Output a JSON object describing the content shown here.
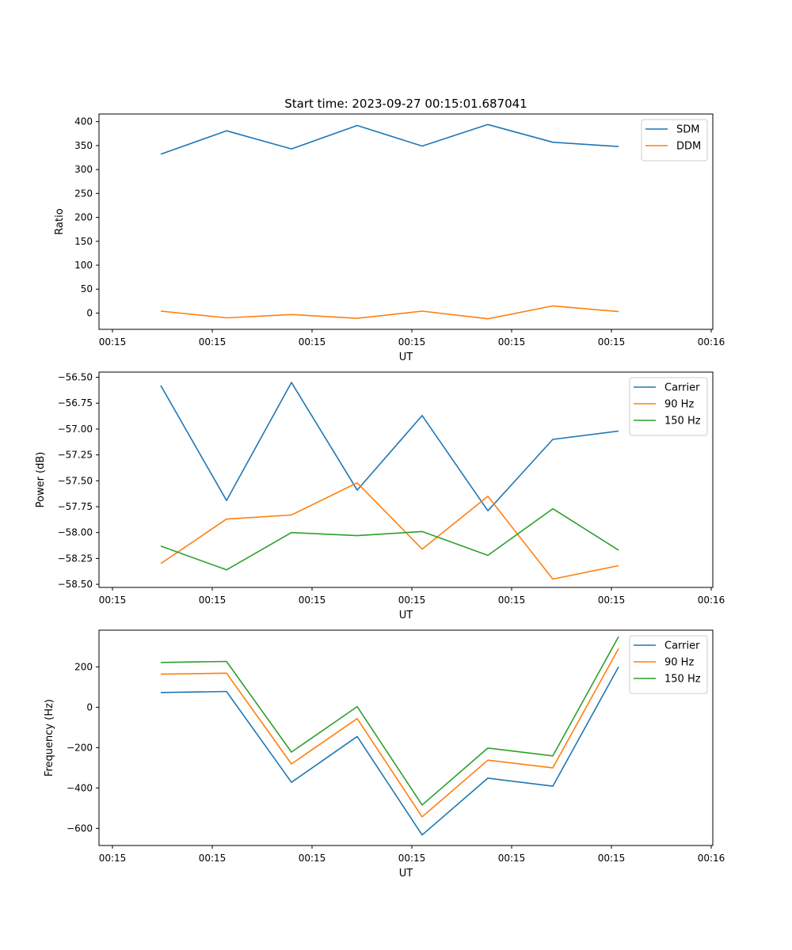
{
  "figure_title": "Start time: 2023-09-27 00:15:01.687041",
  "colors": {
    "c0": "#1f77b4",
    "c1": "#ff7f0e",
    "c2": "#2ca02c",
    "axis": "#000000",
    "legend_border": "#cccccc"
  },
  "chart_data": [
    {
      "type": "line",
      "title": "Start time: 2023-09-27 00:15:01.687041",
      "xlabel": "UT",
      "ylabel": "Ratio",
      "xticks": [
        "00:15",
        "00:15",
        "00:15",
        "00:15",
        "00:15",
        "00:15",
        "00:16"
      ],
      "yticks": [
        0,
        50,
        100,
        150,
        200,
        250,
        300,
        350,
        400
      ],
      "ylim": [
        -34,
        416
      ],
      "legend_position": "top-right",
      "series": [
        {
          "name": "SDM",
          "values": [
            332,
            381,
            343,
            392,
            349,
            394,
            357,
            348
          ]
        },
        {
          "name": "DDM",
          "values": [
            4,
            -10,
            -3,
            -11,
            4,
            -12,
            15,
            3
          ]
        }
      ]
    },
    {
      "type": "line",
      "title": "",
      "xlabel": "UT",
      "ylabel": "Power (dB)",
      "xticks": [
        "00:15",
        "00:15",
        "00:15",
        "00:15",
        "00:15",
        "00:15",
        "00:16"
      ],
      "yticks": [
        -58.5,
        -58.25,
        -58.0,
        -57.75,
        -57.5,
        -57.25,
        -57.0,
        -56.75,
        -56.5
      ],
      "ytick_labels": [
        "−58.50",
        "−58.25",
        "−58.00",
        "−57.75",
        "−57.50",
        "−57.25",
        "−57.00",
        "−56.75",
        "−56.50"
      ],
      "ylim": [
        -58.53,
        -56.45
      ],
      "legend_position": "top-right",
      "series": [
        {
          "name": "Carrier",
          "values": [
            -56.58,
            -57.69,
            -56.55,
            -57.59,
            -56.87,
            -57.79,
            -57.1,
            -57.02
          ]
        },
        {
          "name": "90 Hz",
          "values": [
            -58.3,
            -57.87,
            -57.83,
            -57.52,
            -58.16,
            -57.65,
            -58.45,
            -58.32
          ]
        },
        {
          "name": "150 Hz",
          "values": [
            -58.13,
            -58.36,
            -58.0,
            -58.03,
            -57.99,
            -58.22,
            -57.77,
            -58.17
          ]
        }
      ]
    },
    {
      "type": "line",
      "title": "",
      "xlabel": "UT",
      "ylabel": "Frequency (Hz)",
      "xticks": [
        "00:15",
        "00:15",
        "00:15",
        "00:15",
        "00:15",
        "00:15",
        "00:16"
      ],
      "yticks": [
        -600,
        -400,
        -200,
        0,
        200
      ],
      "ytick_labels": [
        "−600",
        "−400",
        "−200",
        "0",
        "200"
      ],
      "ylim": [
        -685,
        382
      ],
      "legend_position": "top-right",
      "series": [
        {
          "name": "Carrier",
          "values": [
            73,
            78,
            -372,
            -145,
            -633,
            -351,
            -391,
            200
          ]
        },
        {
          "name": "90 Hz",
          "values": [
            164,
            169,
            -281,
            -56,
            -543,
            -262,
            -300,
            291
          ]
        },
        {
          "name": "150 Hz",
          "values": [
            222,
            227,
            -222,
            3,
            -484,
            -202,
            -241,
            350
          ]
        }
      ]
    }
  ]
}
